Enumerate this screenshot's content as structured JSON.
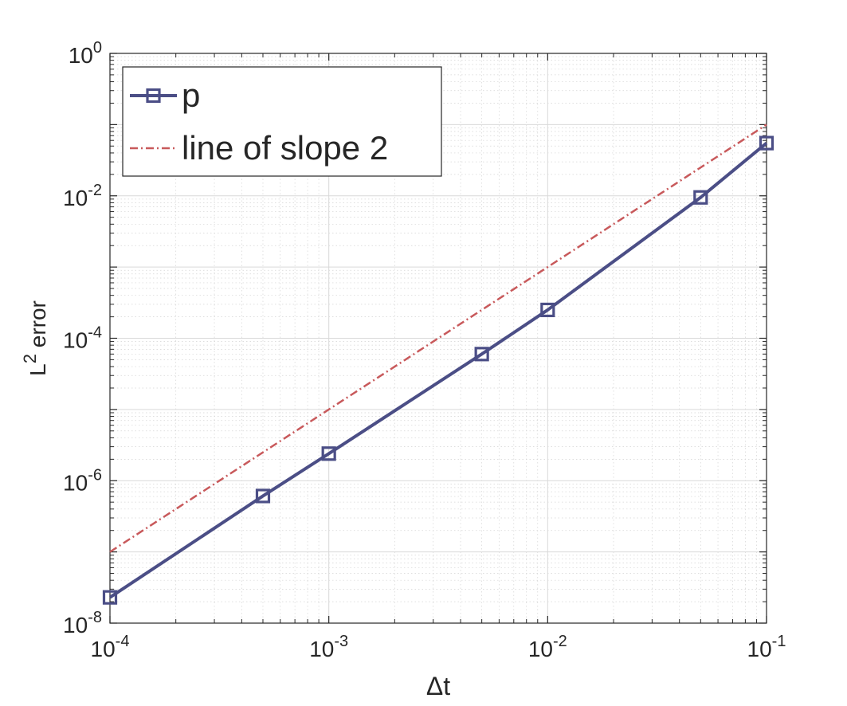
{
  "chart_data": {
    "type": "line",
    "xscale": "log",
    "yscale": "log",
    "xlim": [
      0.0001,
      0.1
    ],
    "ylim": [
      1e-08,
      1
    ],
    "grid": true,
    "minor_grid": true,
    "xlabel": {
      "base": "Δt"
    },
    "ylabel": {
      "base": "L",
      "sup": "2",
      "rest": " error"
    },
    "xticks": [
      {
        "value": 0.0001,
        "base": "10",
        "exp": "-4"
      },
      {
        "value": 0.001,
        "base": "10",
        "exp": "-3"
      },
      {
        "value": 0.01,
        "base": "10",
        "exp": "-2"
      },
      {
        "value": 0.1,
        "base": "10",
        "exp": "-1"
      }
    ],
    "yticks": [
      {
        "value": 1e-08,
        "base": "10",
        "exp": "-8"
      },
      {
        "value": 1e-06,
        "base": "10",
        "exp": "-6"
      },
      {
        "value": 0.0001,
        "base": "10",
        "exp": "-4"
      },
      {
        "value": 0.01,
        "base": "10",
        "exp": "-2"
      },
      {
        "value": 1,
        "base": "10",
        "exp": "0"
      }
    ],
    "legend_position": "top-left",
    "series": [
      {
        "name": "p",
        "color": "#4b4e86",
        "line_style": "solid",
        "marker": "square",
        "x": [
          0.0001,
          0.0005,
          0.001,
          0.005,
          0.01,
          0.05,
          0.1
        ],
        "y": [
          2.3e-08,
          6.1e-07,
          2.4e-06,
          6e-05,
          0.00025,
          0.0095,
          0.055
        ]
      },
      {
        "name": "line of slope 2",
        "color": "#c8595b",
        "line_style": "dash-dot",
        "marker": "none",
        "x": [
          0.0001,
          0.1
        ],
        "y": [
          1e-07,
          0.1
        ]
      }
    ]
  }
}
